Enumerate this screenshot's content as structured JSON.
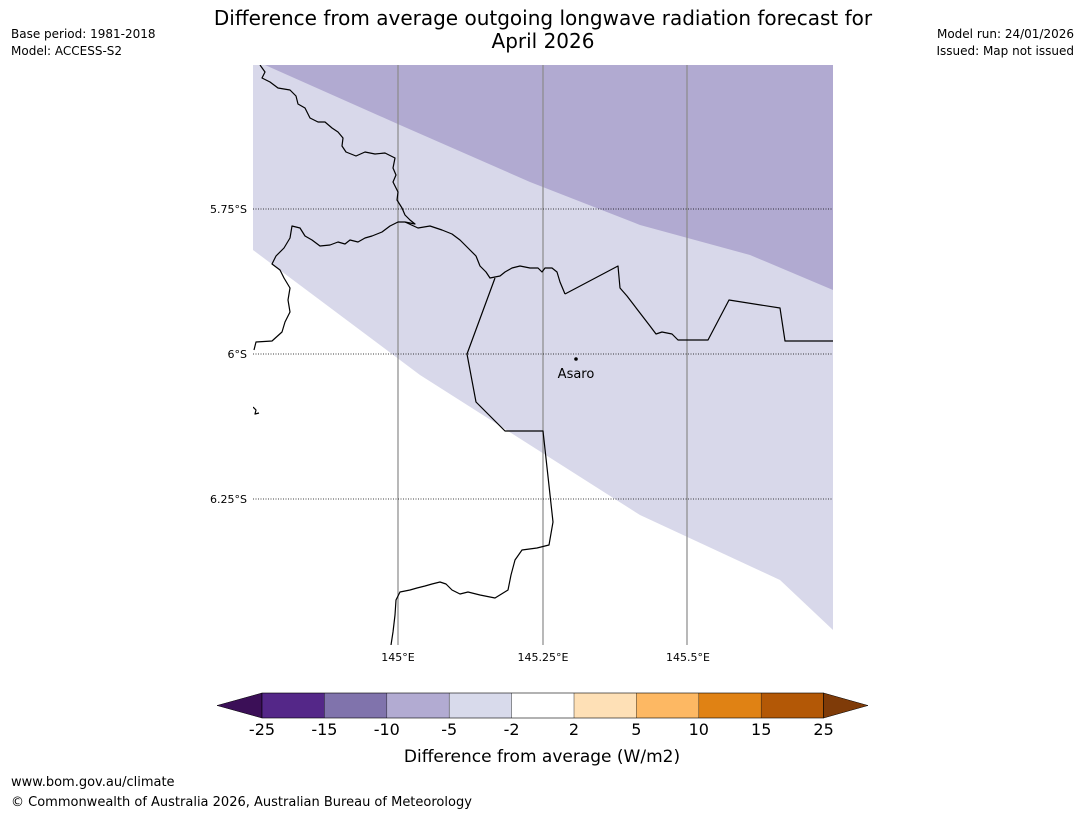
{
  "header": {
    "title_line1": "Difference from average outgoing longwave radiation forecast for",
    "title_line2": "April 2026",
    "base_period": "Base period: 1981-2018",
    "model": "Model: ACCESS-S2",
    "model_run": "Model run: 24/01/2026",
    "issued": "Issued: Map not issued"
  },
  "map": {
    "place_label": "Asaro",
    "lat_labels": [
      "5.75°S",
      "6°S",
      "6.25°S"
    ],
    "lon_labels": [
      "145°E",
      "145.25°E",
      "145.5°E"
    ],
    "shading_colors": {
      "-10 to -5": "#b1aad1",
      "-5 to -2": "#d8d8ea"
    }
  },
  "colorbar": {
    "label": "Difference from average (W/m2)",
    "ticks": [
      "-25",
      "-15",
      "-10",
      "-5",
      "-2",
      "2",
      "5",
      "10",
      "15",
      "25"
    ],
    "under_color": "#3b0f57",
    "over_color": "#7f3b08",
    "colors": [
      "#542788",
      "#8073ac",
      "#b2abd2",
      "#d8daeb",
      "#ffffff",
      "#fee0b6",
      "#fdb863",
      "#e08214",
      "#b35806"
    ]
  },
  "footer": {
    "url": "www.bom.gov.au/climate",
    "copyright": "© Commonwealth of Australia 2026, Australian Bureau of Meteorology"
  }
}
